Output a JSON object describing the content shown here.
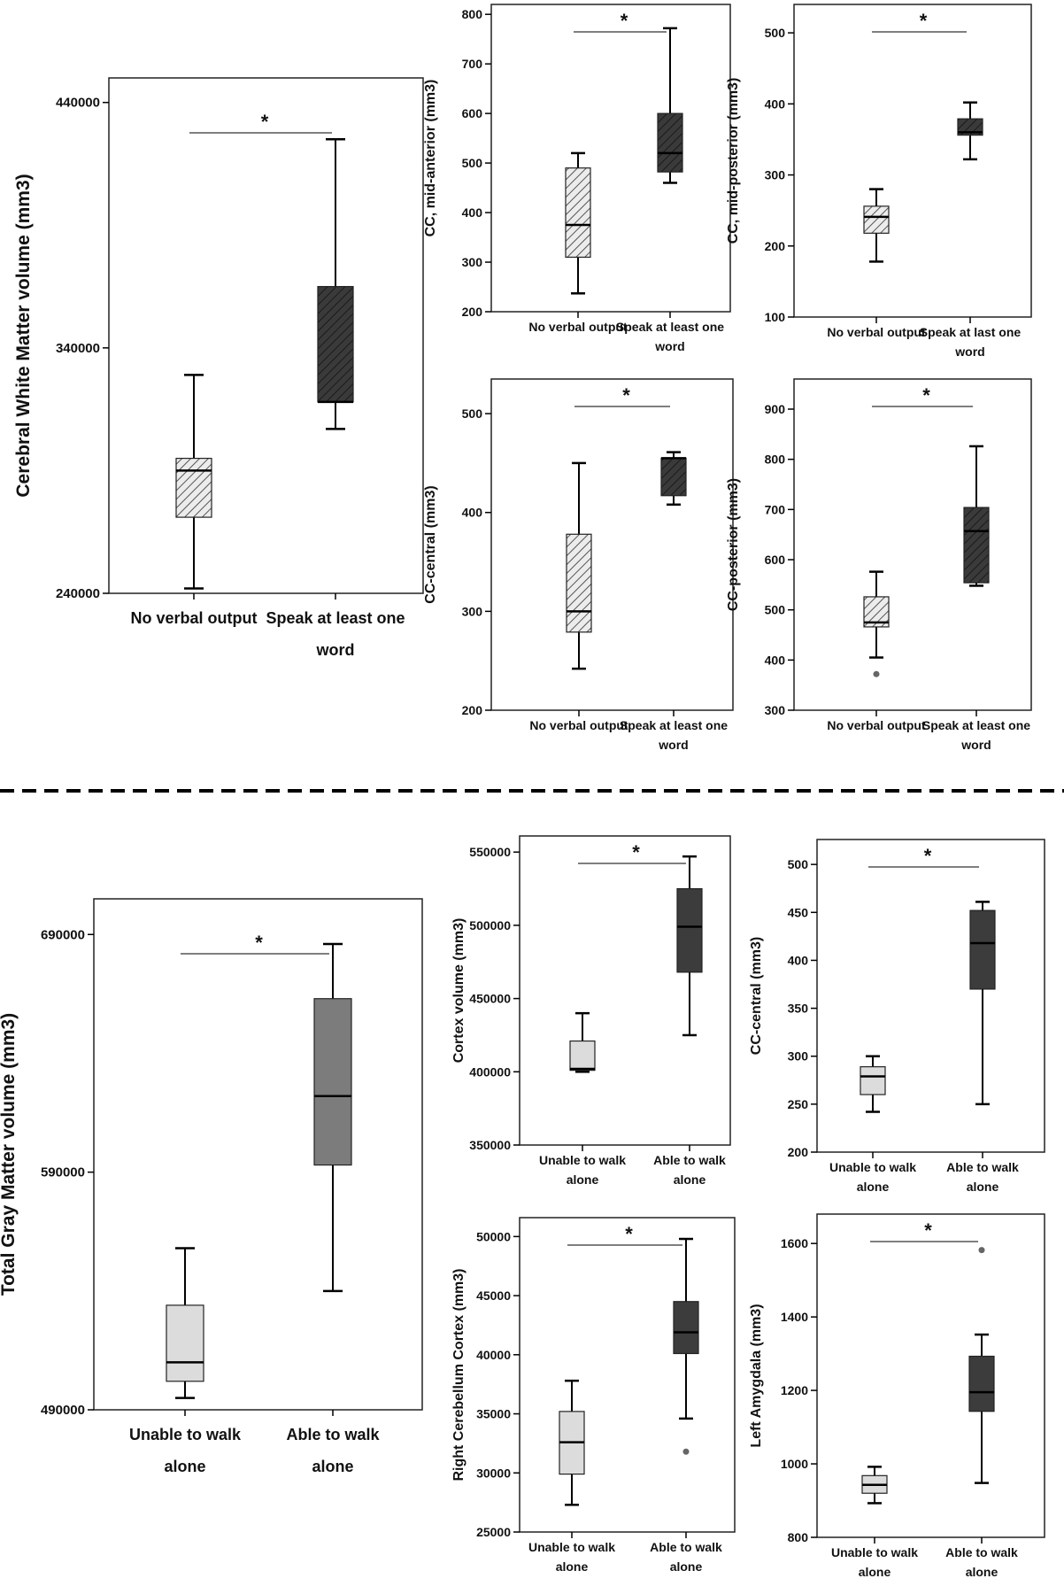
{
  "colors": {
    "light_box": "#d4d4d4",
    "dark_box": "#3c3c3c",
    "medium_box": "#7c7c7c",
    "lighter_box": "#dcdcdc",
    "line": "#000000",
    "significance_line": "#555555",
    "outlier": "#666666"
  },
  "chart_data": [
    {
      "type": "box",
      "group": "top",
      "ylabel": "Cerebral White Matter volume (mm3)",
      "ylim": [
        240000,
        450000
      ],
      "yticks": [
        240000,
        340000,
        440000
      ],
      "categories": [
        "No verbal output",
        "Speak at least one word"
      ],
      "significance": "*",
      "boxes": [
        {
          "whisker_low": 242000,
          "q1": 271000,
          "median": 290000,
          "q3": 295000,
          "whisker_high": 329000,
          "fill": "hatched-light",
          "outliers": []
        },
        {
          "whisker_low": 307000,
          "q1": 318000,
          "median": 318000,
          "q3": 365000,
          "whisker_high": 425000,
          "fill": "hatched-dark",
          "outliers": []
        }
      ]
    },
    {
      "type": "box",
      "group": "top",
      "ylabel": "CC, mid-anterior (mm3)",
      "ylim": [
        200,
        820
      ],
      "yticks": [
        200,
        300,
        400,
        500,
        600,
        700,
        800
      ],
      "categories": [
        "No verbal output",
        "Speak at least one word"
      ],
      "significance": "*",
      "boxes": [
        {
          "whisker_low": 237,
          "q1": 310,
          "median": 375,
          "q3": 490,
          "whisker_high": 520,
          "fill": "hatched-light",
          "outliers": []
        },
        {
          "whisker_low": 460,
          "q1": 482,
          "median": 520,
          "q3": 600,
          "whisker_high": 772,
          "fill": "hatched-dark",
          "outliers": []
        }
      ]
    },
    {
      "type": "box",
      "group": "top",
      "ylabel": "CC, mid-posterior (mm3)",
      "ylim": [
        100,
        540
      ],
      "yticks": [
        100,
        200,
        300,
        400,
        500
      ],
      "categories": [
        "No verbal output",
        "Speak at last one word"
      ],
      "significance": "*",
      "boxes": [
        {
          "whisker_low": 178,
          "q1": 218,
          "median": 241,
          "q3": 256,
          "whisker_high": 280,
          "fill": "hatched-light",
          "outliers": []
        },
        {
          "whisker_low": 322,
          "q1": 356,
          "median": 360,
          "q3": 379,
          "whisker_high": 402,
          "fill": "hatched-dark",
          "outliers": []
        }
      ]
    },
    {
      "type": "box",
      "group": "top",
      "ylabel": "CC-central (mm3)",
      "ylim": [
        200,
        535
      ],
      "yticks": [
        200,
        300,
        400,
        500
      ],
      "categories": [
        "No verbal output",
        "Speak at least one word"
      ],
      "significance": "*",
      "boxes": [
        {
          "whisker_low": 242,
          "q1": 279,
          "median": 300,
          "q3": 378,
          "whisker_high": 450,
          "fill": "hatched-light",
          "outliers": []
        },
        {
          "whisker_low": 408,
          "q1": 417,
          "median": 455,
          "q3": 455,
          "whisker_high": 461,
          "fill": "hatched-dark",
          "outliers": []
        }
      ]
    },
    {
      "type": "box",
      "group": "top",
      "ylabel": "CC-posterior (mm3)",
      "ylim": [
        300,
        960
      ],
      "yticks": [
        300,
        400,
        500,
        600,
        700,
        800,
        900
      ],
      "categories": [
        "No verbal output",
        "Speak at least one word"
      ],
      "significance": "*",
      "boxes": [
        {
          "whisker_low": 405,
          "q1": 466,
          "median": 475,
          "q3": 526,
          "whisker_high": 576,
          "fill": "hatched-light",
          "outliers": [
            372
          ]
        },
        {
          "whisker_low": 548,
          "q1": 554,
          "median": 657,
          "q3": 704,
          "whisker_high": 826,
          "fill": "hatched-dark",
          "outliers": []
        }
      ]
    },
    {
      "type": "box",
      "group": "bottom",
      "ylabel": "Total Gray Matter volume (mm3)",
      "ylim": [
        490000,
        705000
      ],
      "yticks": [
        490000,
        590000,
        690000
      ],
      "categories": [
        "Unable to walk alone",
        "Able to walk alone"
      ],
      "significance": "*",
      "boxes": [
        {
          "whisker_low": 495000,
          "q1": 502000,
          "median": 510000,
          "q3": 534000,
          "whisker_high": 558000,
          "fill": "lighter",
          "outliers": []
        },
        {
          "whisker_low": 540000,
          "q1": 593000,
          "median": 622000,
          "q3": 663000,
          "whisker_high": 686000,
          "fill": "medium",
          "outliers": []
        }
      ]
    },
    {
      "type": "box",
      "group": "bottom",
      "ylabel": "Cortex volume (mm3)",
      "ylim": [
        350000,
        561000
      ],
      "yticks": [
        350000,
        400000,
        450000,
        500000,
        550000
      ],
      "categories": [
        "Unable to walk alone",
        "Able to walk alone"
      ],
      "significance": "*",
      "boxes": [
        {
          "whisker_low": 400000,
          "q1": 401000,
          "median": 402000,
          "q3": 421000,
          "whisker_high": 440000,
          "fill": "lighter",
          "outliers": []
        },
        {
          "whisker_low": 425000,
          "q1": 468000,
          "median": 499000,
          "q3": 525000,
          "whisker_high": 547000,
          "fill": "dark",
          "outliers": []
        }
      ]
    },
    {
      "type": "box",
      "group": "bottom",
      "ylabel": "CC-central (mm3)",
      "ylim": [
        200,
        526
      ],
      "yticks": [
        200,
        250,
        300,
        350,
        400,
        450,
        500
      ],
      "categories": [
        "Unable to walk alone",
        "Able to walk alone"
      ],
      "significance": "*",
      "boxes": [
        {
          "whisker_low": 242,
          "q1": 260,
          "median": 279,
          "q3": 289,
          "whisker_high": 300,
          "fill": "lighter",
          "outliers": []
        },
        {
          "whisker_low": 250,
          "q1": 370,
          "median": 418,
          "q3": 452,
          "whisker_high": 461,
          "fill": "dark",
          "outliers": []
        }
      ]
    },
    {
      "type": "box",
      "group": "bottom",
      "ylabel": "Right Cerebellum Cortex (mm3)",
      "ylim": [
        25000,
        51600
      ],
      "yticks": [
        25000,
        30000,
        35000,
        40000,
        45000,
        50000
      ],
      "categories": [
        "Unable to walk alone",
        "Able to walk alone"
      ],
      "significance": "*",
      "boxes": [
        {
          "whisker_low": 27300,
          "q1": 29900,
          "median": 32600,
          "q3": 35200,
          "whisker_high": 37800,
          "fill": "lighter",
          "outliers": []
        },
        {
          "whisker_low": 34600,
          "q1": 40100,
          "median": 41900,
          "q3": 44500,
          "whisker_high": 49800,
          "fill": "dark",
          "outliers": [
            31800
          ]
        }
      ]
    },
    {
      "type": "box",
      "group": "bottom",
      "ylabel": "Left Amygdala (mm3)",
      "ylim": [
        800,
        1680
      ],
      "yticks": [
        800,
        1000,
        1200,
        1400,
        1600
      ],
      "categories": [
        "Unable to walk alone",
        "Able to walk alone"
      ],
      "significance": "*",
      "boxes": [
        {
          "whisker_low": 893,
          "q1": 920,
          "median": 943,
          "q3": 968,
          "whisker_high": 992,
          "fill": "lighter",
          "outliers": []
        },
        {
          "whisker_low": 948,
          "q1": 1143,
          "median": 1195,
          "q3": 1293,
          "whisker_high": 1352,
          "fill": "dark",
          "outliers": [
            1582
          ]
        }
      ]
    }
  ]
}
